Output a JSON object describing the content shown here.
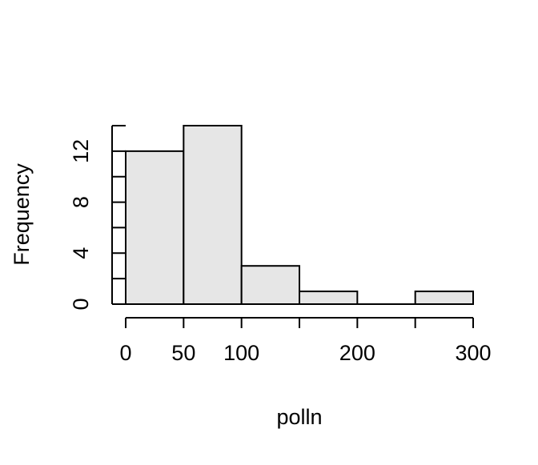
{
  "chart_data": {
    "type": "histogram",
    "title": "",
    "xlabel": "polln",
    "ylabel": "Frequency",
    "bins": [
      {
        "start": 0,
        "end": 50,
        "count": 12
      },
      {
        "start": 50,
        "end": 100,
        "count": 14
      },
      {
        "start": 100,
        "end": 150,
        "count": 3
      },
      {
        "start": 150,
        "end": 200,
        "count": 1
      },
      {
        "start": 200,
        "end": 250,
        "count": 0
      },
      {
        "start": 250,
        "end": 300,
        "count": 1
      }
    ],
    "xlim": [
      0,
      300
    ],
    "ylim": [
      0,
      14
    ],
    "x_ticks": [
      0,
      50,
      100,
      150,
      200,
      250,
      300
    ],
    "x_tick_labels": [
      "0",
      "50",
      "100",
      "",
      "200",
      "",
      "300"
    ],
    "y_ticks": [
      0,
      2,
      4,
      6,
      8,
      10,
      12,
      14
    ],
    "y_tick_labels": [
      "0",
      "",
      "4",
      "",
      "8",
      "",
      "12",
      ""
    ],
    "bar_fill": "#e6e6e6",
    "bar_stroke": "#000000",
    "grid": false
  }
}
